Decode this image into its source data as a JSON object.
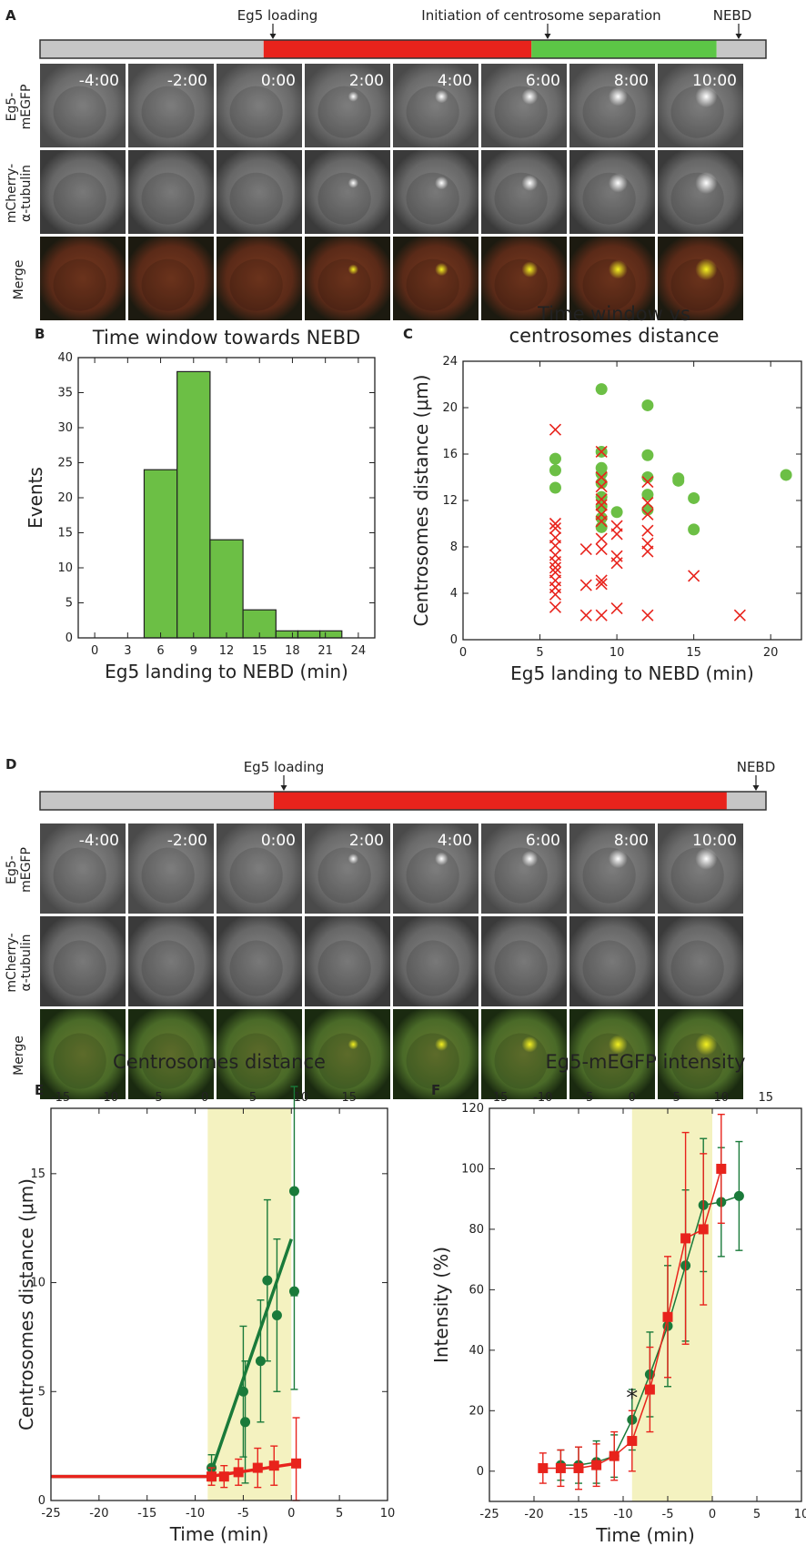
{
  "panelA": {
    "letter": "A",
    "events": [
      "Eg5 loading",
      "Initiation of centrosome separation",
      "NEBD"
    ],
    "timeline": [
      {
        "from": 0,
        "to": 0.308,
        "color": "#c6c6c6"
      },
      {
        "from": 0.308,
        "to": 0.677,
        "color": "#e8231c"
      },
      {
        "from": 0.677,
        "to": 0.932,
        "color": "#5cc646"
      },
      {
        "from": 0.932,
        "to": 1,
        "color": "#c6c6c6"
      }
    ],
    "times": [
      "-4:00",
      "-2:00",
      "0:00",
      "2:00",
      "4:00",
      "6:00",
      "8:00",
      "10:00"
    ],
    "rows": [
      "Eg5-\nmEGFP",
      "mCherry-\nα-tubulin",
      "Merge"
    ]
  },
  "panelD": {
    "letter": "D",
    "events": [
      "Eg5 loading",
      "NEBD"
    ],
    "timeline": [
      {
        "from": 0,
        "to": 0.322,
        "color": "#c6c6c6"
      },
      {
        "from": 0.322,
        "to": 0.946,
        "color": "#e8231c"
      },
      {
        "from": 0.946,
        "to": 1,
        "color": "#c6c6c6"
      }
    ],
    "times": [
      "-4:00",
      "-2:00",
      "0:00",
      "2:00",
      "4:00",
      "6:00",
      "8:00",
      "10:00"
    ],
    "rows": [
      "Eg5-\nmEGFP",
      "mCherry-\nα-tubulin",
      "Merge"
    ]
  },
  "chart_data": [
    {
      "panel": "B",
      "type": "bar",
      "title": "Time window towards NEBD",
      "xlabel": "Eg5 landing to NEBD (min)",
      "ylabel": "Events",
      "xlim": [
        -1.5,
        25.5
      ],
      "ylim": [
        0,
        40
      ],
      "xticks": [
        0,
        3,
        6,
        9,
        12,
        15,
        18,
        21,
        24
      ],
      "yticks": [
        0,
        5,
        10,
        15,
        20,
        25,
        30,
        35,
        40
      ],
      "bin_edges": [
        4.5,
        7.5,
        10.5,
        13.5,
        16.5,
        18.5,
        20.5,
        22.5
      ],
      "values": [
        24,
        38,
        14,
        4,
        1,
        1,
        1
      ],
      "color": "#6cbf45"
    },
    {
      "panel": "C",
      "type": "scatter",
      "title": "Time window vs\ncentrosomes distance",
      "xlabel": "Eg5 landing to NEBD (min)",
      "ylabel": "Centrosomes distance (μm)",
      "xlim": [
        0,
        22
      ],
      "ylim": [
        0,
        24
      ],
      "xticks": [
        0,
        5,
        10,
        15,
        20
      ],
      "yticks": [
        0,
        4,
        8,
        12,
        16,
        20,
        24
      ],
      "series": [
        {
          "marker": "circle",
          "color": "#6cbf45",
          "points": [
            [
              6,
              15.6
            ],
            [
              6,
              14.6
            ],
            [
              6,
              13.1
            ],
            [
              9,
              21.6
            ],
            [
              9,
              16.2
            ],
            [
              9,
              14.8
            ],
            [
              9,
              14.3
            ],
            [
              9,
              13.5
            ],
            [
              9,
              12.3
            ],
            [
              9,
              11.5
            ],
            [
              9,
              10.5
            ],
            [
              9,
              9.7
            ],
            [
              10,
              11
            ],
            [
              12,
              20.2
            ],
            [
              12,
              15.9
            ],
            [
              12,
              14
            ],
            [
              12,
              12.5
            ],
            [
              12,
              11.2
            ],
            [
              14,
              13.9
            ],
            [
              14,
              13.7
            ],
            [
              15,
              12.2
            ],
            [
              15,
              9.5
            ],
            [
              21,
              14.2
            ]
          ]
        },
        {
          "marker": "x",
          "color": "#e8231c",
          "points": [
            [
              6,
              18.1
            ],
            [
              6,
              10
            ],
            [
              6,
              9.6
            ],
            [
              6,
              8.8
            ],
            [
              6,
              8.1
            ],
            [
              6,
              7.3
            ],
            [
              6,
              6.7
            ],
            [
              6,
              6.2
            ],
            [
              6,
              5.8
            ],
            [
              6,
              5.1
            ],
            [
              6,
              4.5
            ],
            [
              6,
              3.9
            ],
            [
              6,
              2.8
            ],
            [
              8,
              7.8
            ],
            [
              8,
              4.7
            ],
            [
              8,
              2.1
            ],
            [
              9,
              16.2
            ],
            [
              9,
              14
            ],
            [
              9,
              13.2
            ],
            [
              9,
              12.1
            ],
            [
              9,
              11.6
            ],
            [
              9,
              10.8
            ],
            [
              9,
              10.2
            ],
            [
              9,
              8.7
            ],
            [
              9,
              7.8
            ],
            [
              9,
              5.1
            ],
            [
              9,
              4.8
            ],
            [
              9,
              2.1
            ],
            [
              10,
              9.8
            ],
            [
              10,
              9.1
            ],
            [
              10,
              7.2
            ],
            [
              10,
              6.6
            ],
            [
              10,
              2.7
            ],
            [
              12,
              13.6
            ],
            [
              12,
              11.8
            ],
            [
              12,
              10.8
            ],
            [
              12,
              9.4
            ],
            [
              12,
              8.3
            ],
            [
              12,
              7.6
            ],
            [
              12,
              2.1
            ],
            [
              15,
              5.5
            ],
            [
              18,
              2.1
            ]
          ]
        }
      ]
    },
    {
      "panel": "E",
      "type": "line",
      "title": "Centrosomes distance",
      "xlabel": "Time (min)",
      "ylabel": "Centrosomes distance (μm)",
      "xlim": [
        -25,
        10
      ],
      "ylim": [
        0,
        18
      ],
      "xticks": [
        -25,
        -20,
        -15,
        -10,
        -5,
        0,
        5,
        10
      ],
      "top_xticks": [
        -15,
        -10,
        -5,
        0,
        5,
        10,
        15
      ],
      "yticks": [
        0,
        5,
        10,
        15
      ],
      "shade": [
        -8.7,
        0
      ],
      "series": [
        {
          "color": "#1a7a3a",
          "marker": "circle",
          "x": [
            -8.3,
            -5,
            -4.8,
            -3.2,
            -2.5,
            -1.5,
            0.3,
            0.3
          ],
          "y": [
            1.5,
            5,
            3.6,
            6.4,
            10.1,
            8.5,
            14.2,
            9.6
          ],
          "err": [
            0.6,
            3,
            2.8,
            2.8,
            3.7,
            3.5,
            4.8,
            4.5
          ],
          "fit": [
            [
              -25,
              1.1
            ],
            [
              -8.5,
              1.1
            ],
            [
              0,
              12
            ]
          ]
        },
        {
          "color": "#e8231c",
          "marker": "square",
          "x": [
            -8.3,
            -7,
            -5.5,
            -3.5,
            -1.8,
            0.5
          ],
          "y": [
            1.1,
            1.1,
            1.3,
            1.5,
            1.6,
            1.7
          ],
          "err": [
            0.4,
            0.5,
            0.6,
            0.9,
            0.9,
            2.1
          ],
          "fit": [
            [
              -25,
              1.1
            ],
            [
              -8.5,
              1.1
            ],
            [
              0.5,
              1.7
            ]
          ]
        }
      ]
    },
    {
      "panel": "F",
      "type": "line",
      "title": "Eg5-mEGFP intensity",
      "xlabel": "Time (min)",
      "ylabel": "Intensity (%)",
      "xlim": [
        -25,
        10
      ],
      "ylim": [
        -10,
        120
      ],
      "xticks": [
        -25,
        -20,
        -15,
        -10,
        -5,
        0,
        5,
        10
      ],
      "top_xticks": [
        -15,
        -10,
        -5,
        0,
        5,
        10,
        15
      ],
      "yticks": [
        0,
        20,
        40,
        60,
        80,
        100,
        120
      ],
      "shade": [
        -9,
        0
      ],
      "annotation": {
        "text": "*",
        "x": -9,
        "y": 24
      },
      "series": [
        {
          "color": "#1a7a3a",
          "marker": "circle",
          "x": [
            -17,
            -15,
            -13,
            -11,
            -9,
            -7,
            -5,
            -3,
            -1,
            1,
            3
          ],
          "y": [
            2,
            2,
            3,
            5,
            17,
            32,
            48,
            68,
            88,
            89,
            91
          ],
          "err": [
            5,
            6,
            7,
            7,
            10,
            14,
            20,
            25,
            22,
            18,
            18
          ]
        },
        {
          "color": "#e8231c",
          "marker": "square",
          "x": [
            -19,
            -17,
            -15,
            -13,
            -11,
            -9,
            -7,
            -5,
            -3,
            -1,
            1
          ],
          "y": [
            1,
            1,
            1,
            2,
            5,
            10,
            27,
            51,
            77,
            80,
            100
          ],
          "err": [
            5,
            6,
            7,
            7,
            8,
            10,
            14,
            20,
            35,
            25,
            18
          ]
        }
      ]
    }
  ]
}
